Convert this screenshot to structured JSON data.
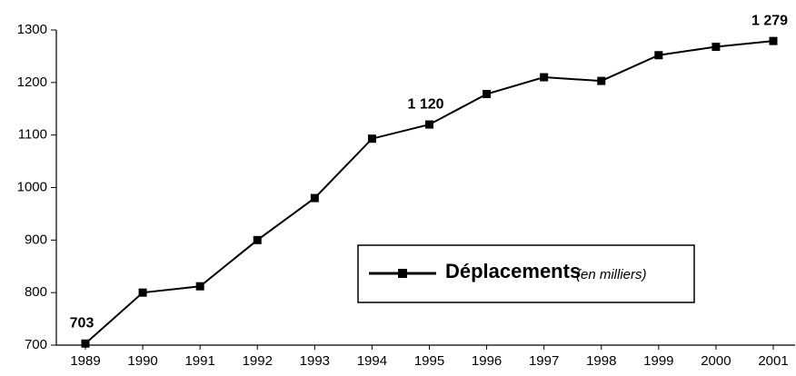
{
  "chart_data": {
    "type": "line",
    "categories": [
      "1989",
      "1990",
      "1991",
      "1992",
      "1993",
      "1994",
      "1995",
      "1996",
      "1997",
      "1998",
      "1999",
      "2000",
      "2001"
    ],
    "series": [
      {
        "name": "Déplacements",
        "color": "#000000",
        "values": [
          703,
          800,
          812,
          900,
          980,
          1093,
          1120,
          1178,
          1210,
          1203,
          1252,
          1268,
          1279
        ],
        "value_labels": [
          "703",
          null,
          null,
          null,
          null,
          null,
          "1 120",
          null,
          null,
          null,
          null,
          null,
          "1 279"
        ]
      }
    ],
    "legend_note": "(en milliers)",
    "ylim": [
      700,
      1300
    ],
    "yticks": [
      700,
      800,
      900,
      1000,
      1100,
      1200,
      1300
    ],
    "grid": false
  }
}
